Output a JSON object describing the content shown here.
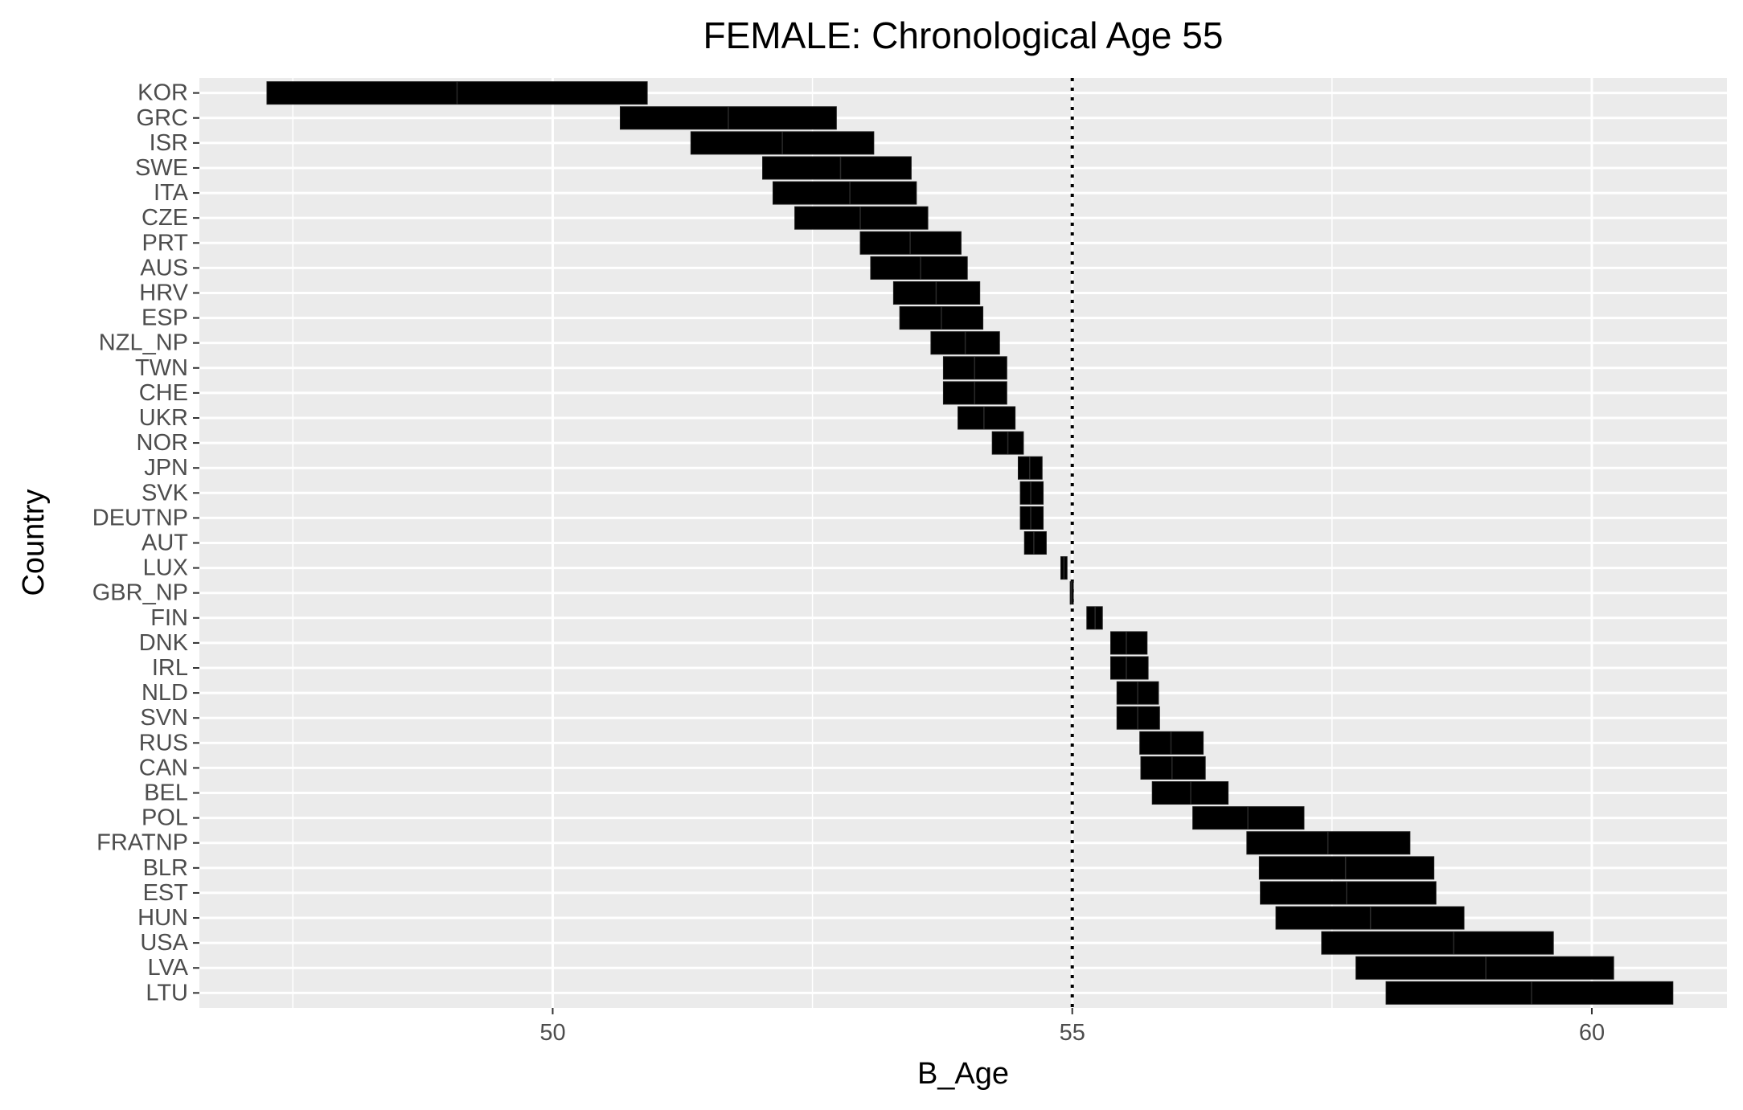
{
  "chart_data": {
    "type": "bar",
    "orientation": "horizontal-range",
    "title": "FEMALE: Chronological Age 55",
    "xlabel": "B_Age",
    "ylabel": "Country",
    "xlim": [
      46.6,
      61.3
    ],
    "xticks": [
      50,
      55,
      60
    ],
    "xtick_labels": [
      "50",
      "55",
      "60"
    ],
    "reference_line": {
      "x": 55,
      "style": "dotted"
    },
    "grid": true,
    "background": "#ebebeb",
    "bar_color": "#000000",
    "categories": [
      "KOR",
      "GRC",
      "ISR",
      "SWE",
      "ITA",
      "CZE",
      "PRT",
      "AUS",
      "HRV",
      "ESP",
      "NZL_NP",
      "TWN",
      "CHE",
      "UKR",
      "NOR",
      "JPN",
      "SVK",
      "DEUTNP",
      "AUT",
      "LUX",
      "GBR_NP",
      "FIN",
      "DNK",
      "IRL",
      "NLD",
      "SVN",
      "RUS",
      "CAN",
      "BEL",
      "POL",
      "FRATNP",
      "BLR",
      "EST",
      "HUN",
      "USA",
      "LVA",
      "LTU"
    ],
    "low": [
      47.25,
      50.65,
      51.33,
      52.02,
      52.12,
      52.33,
      52.96,
      53.06,
      53.28,
      53.34,
      53.64,
      53.76,
      53.76,
      53.9,
      54.23,
      54.48,
      54.5,
      54.5,
      54.54,
      54.89,
      54.98,
      55.14,
      55.37,
      55.37,
      55.43,
      55.43,
      55.65,
      55.66,
      55.77,
      56.16,
      56.68,
      56.8,
      56.81,
      56.96,
      57.4,
      57.73,
      58.02
    ],
    "mid": [
      49.08,
      51.69,
      52.21,
      52.77,
      52.86,
      52.96,
      53.44,
      53.54,
      53.69,
      53.74,
      53.97,
      54.06,
      54.06,
      54.15,
      54.38,
      54.59,
      54.6,
      54.6,
      54.63,
      54.92,
      54.99,
      55.22,
      55.52,
      55.52,
      55.63,
      55.63,
      55.95,
      55.96,
      56.14,
      56.69,
      57.46,
      57.63,
      57.64,
      57.87,
      58.67,
      58.98,
      59.42
    ],
    "high": [
      50.91,
      52.73,
      53.09,
      53.45,
      53.5,
      53.61,
      53.93,
      53.99,
      54.11,
      54.14,
      54.3,
      54.37,
      54.37,
      54.45,
      54.53,
      54.71,
      54.72,
      54.72,
      54.75,
      54.95,
      55.01,
      55.29,
      55.72,
      55.73,
      55.83,
      55.84,
      56.26,
      56.28,
      56.5,
      57.23,
      58.25,
      58.48,
      58.5,
      58.77,
      59.63,
      60.21,
      60.78
    ]
  }
}
